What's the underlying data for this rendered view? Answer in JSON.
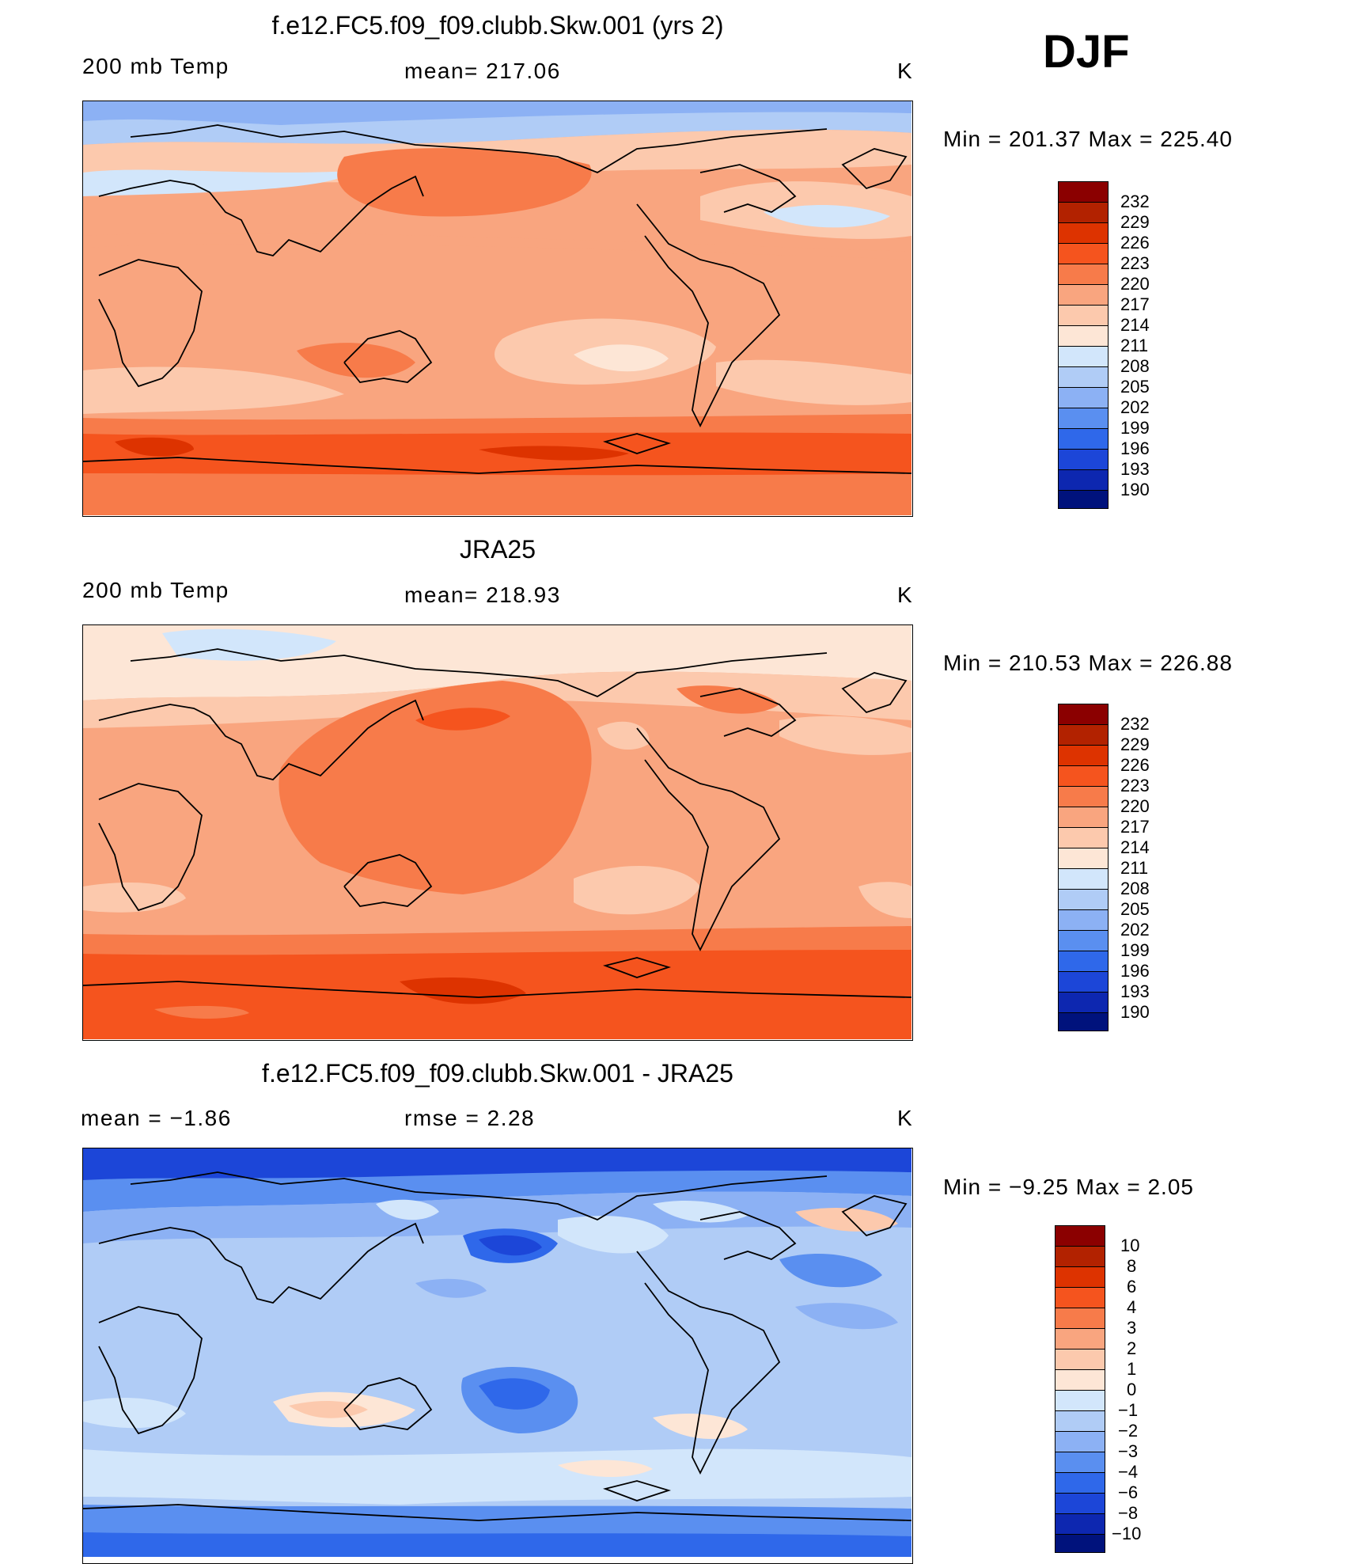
{
  "season": "DJF",
  "panels": [
    {
      "title": "f.e12.FC5.f09_f09.clubb.Skw.001 (yrs 2)",
      "left_label": "200 mb Temp",
      "center_label": "mean= 217.06",
      "unit": "K",
      "minmax": "Min = 201.37 Max = 225.40",
      "colorbar_ticks": [
        "232",
        "229",
        "226",
        "223",
        "220",
        "217",
        "214",
        "211",
        "208",
        "205",
        "202",
        "199",
        "196",
        "193",
        "190"
      ]
    },
    {
      "title": "JRA25",
      "left_label": "200 mb Temp",
      "center_label": "mean= 218.93",
      "unit": "K",
      "minmax": "Min = 210.53 Max = 226.88",
      "colorbar_ticks": [
        "232",
        "229",
        "226",
        "223",
        "220",
        "217",
        "214",
        "211",
        "208",
        "205",
        "202",
        "199",
        "196",
        "193",
        "190"
      ]
    },
    {
      "title": "f.e12.FC5.f09_f09.clubb.Skw.001 - JRA25",
      "left_label": "mean =   −1.86",
      "center_label": "rmse =    2.28",
      "unit": "K",
      "minmax": "Min =   −9.25 Max =    2.05",
      "colorbar_ticks": [
        "10",
        "8",
        "6",
        "4",
        "3",
        "2",
        "1",
        "0",
        "−1",
        "−2",
        "−3",
        "−4",
        "−6",
        "−8",
        "−10"
      ]
    }
  ],
  "colors": {
    "scale": [
      "#8b0000",
      "#b22200",
      "#dd3300",
      "#f5541e",
      "#f77b4a",
      "#f9a57f",
      "#fcc9ad",
      "#fde6d6",
      "#d2e6fb",
      "#b0ccf6",
      "#8cb1f4",
      "#5a8ff0",
      "#2f68ea",
      "#1c46d8",
      "#0d27b0",
      "#00127c"
    ]
  }
}
